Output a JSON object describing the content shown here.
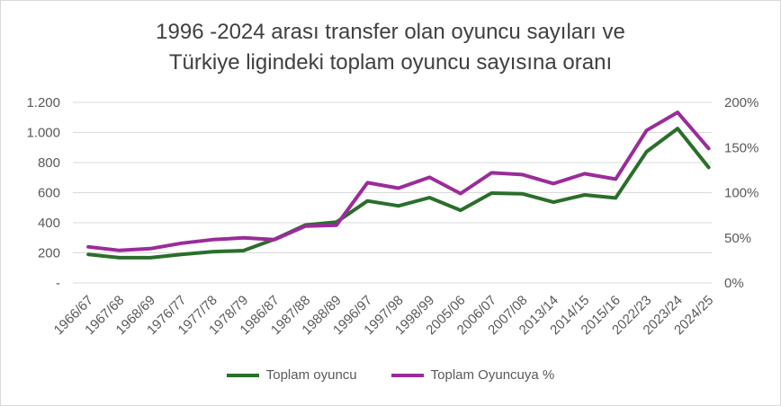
{
  "chart_data": {
    "type": "line",
    "title": [
      "1996 -2024 arası transfer olan oyuncu sayıları ve",
      "Türkiye ligindeki toplam oyuncu sayısına oranı"
    ],
    "categories": [
      "1966/67",
      "1967/68",
      "1968/69",
      "1976/77",
      "1977/78",
      "1978/79",
      "1986/87",
      "1987/88",
      "1988/89",
      "1996/97",
      "1997/98",
      "1998/99",
      "2005/06",
      "2006/07",
      "2007/08",
      "2013/14",
      "2014/15",
      "2015/16",
      "2022/23",
      "2023/24",
      "2024/25"
    ],
    "y_left": {
      "ylim": [
        0,
        1200
      ],
      "ticks": [
        0,
        200,
        400,
        600,
        800,
        1000,
        1200
      ],
      "tick_labels": [
        "-",
        "200",
        "400",
        "600",
        "800",
        "1.000",
        "1.200"
      ]
    },
    "y_right": {
      "ylim": [
        0,
        2
      ],
      "ticks": [
        0,
        0.5,
        1,
        1.5,
        2
      ],
      "tick_labels": [
        "0%",
        "50%",
        "100%",
        "150%",
        "200%"
      ]
    },
    "series": [
      {
        "name": "Toplam oyuncu",
        "axis": "left",
        "color": "#2a6e2a",
        "values": [
          190,
          168,
          168,
          190,
          208,
          215,
          290,
          385,
          405,
          545,
          512,
          567,
          483,
          597,
          592,
          537,
          585,
          565,
          872,
          1026,
          768
        ]
      },
      {
        "name": "Toplam Oyuncuya %",
        "axis": "right",
        "color": "#9a2c9a",
        "values": [
          0.4,
          0.36,
          0.38,
          0.44,
          0.48,
          0.5,
          0.48,
          0.63,
          0.64,
          1.11,
          1.05,
          1.17,
          0.99,
          1.22,
          1.2,
          1.1,
          1.21,
          1.15,
          1.69,
          1.89,
          1.49
        ]
      }
    ],
    "grid": true,
    "legend": "bottom-center"
  }
}
